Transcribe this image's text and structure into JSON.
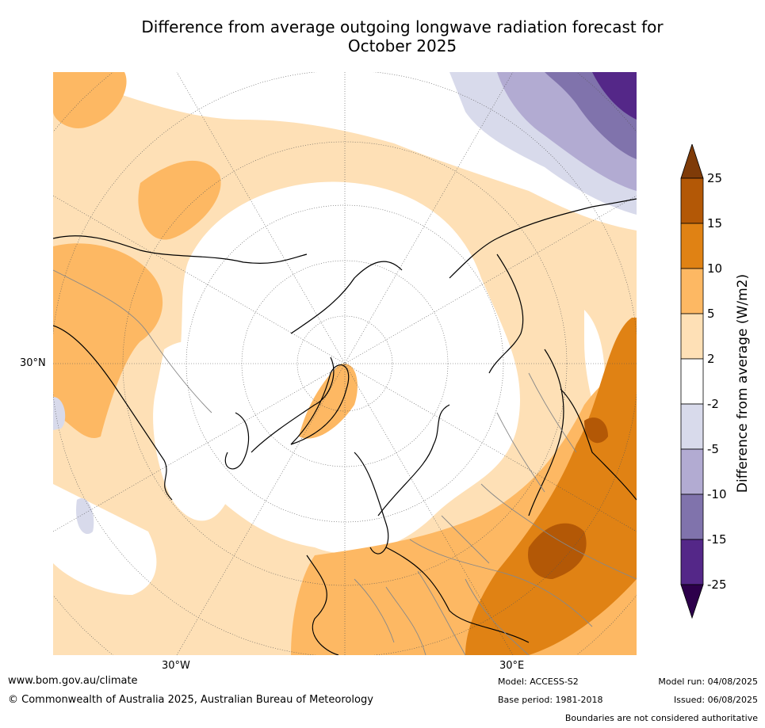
{
  "title_line1": "Difference from average outgoing longwave radiation forecast for",
  "title_line2": "October 2025",
  "labels": {
    "lat30": "30°N",
    "lon_w": "30°W",
    "lon_e": "30°E"
  },
  "colorbar": {
    "title": "Difference from average (W/m2)",
    "ticks": [
      "25",
      "15",
      "10",
      "5",
      "2",
      "-2",
      "-5",
      "-10",
      "-15",
      "-25"
    ],
    "colors": {
      "gt25": "#7f3b08",
      "15_25": "#b35806",
      "10_15": "#e08214",
      "5_10": "#fdb863",
      "2_5": "#fee0b6",
      "neutral": "#ffffff",
      "m2_m5": "#d8daeb",
      "m5_m10": "#b2abd2",
      "m10_m15": "#8073ac",
      "m15_m25": "#542788",
      "lt_m25": "#2d004b"
    }
  },
  "footer": {
    "website": "www.bom.gov.au/climate",
    "copyright": "© Commonwealth of Australia 2025, Australian Bureau of Meteorology",
    "model": "Model: ACCESS-S2",
    "base_period": "Base period: 1981-2018",
    "model_run": "Model run: 04/08/2025",
    "issued": "Issued: 06/08/2025",
    "disclaimer": "Boundaries are not considered authoritative"
  }
}
